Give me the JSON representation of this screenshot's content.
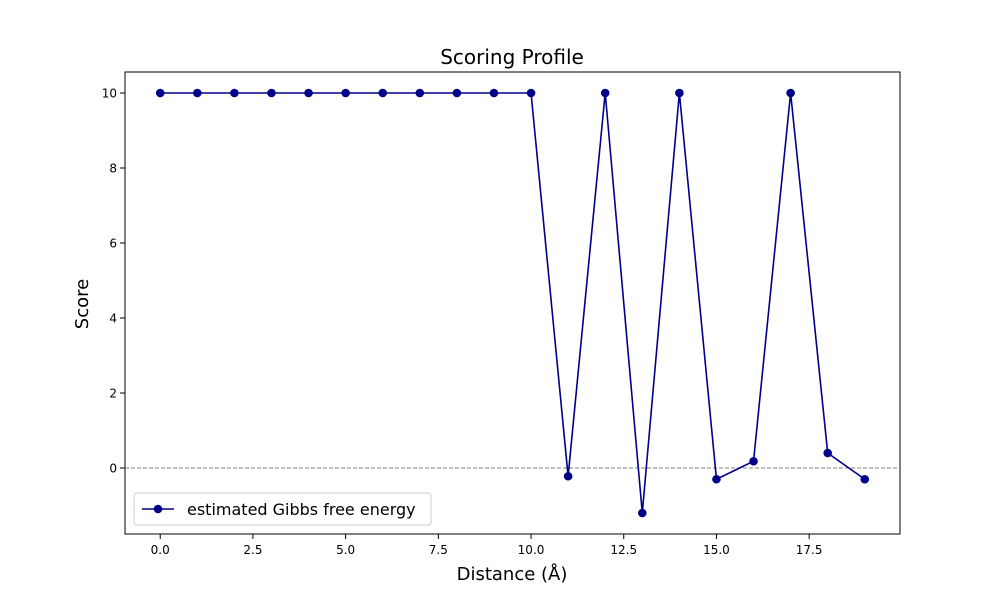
{
  "chart_data": {
    "type": "line",
    "title": "Scoring Profile",
    "xlabel": "Distance (Å)",
    "ylabel": "Score",
    "xlim": [
      -0.95,
      19.95
    ],
    "ylim": [
      -1.76,
      10.56
    ],
    "xticks": [
      0.0,
      2.5,
      5.0,
      7.5,
      10.0,
      12.5,
      15.0,
      17.5
    ],
    "xtick_labels": [
      "0.0",
      "2.5",
      "5.0",
      "7.5",
      "10.0",
      "12.5",
      "15.0",
      "17.5"
    ],
    "yticks": [
      0,
      2,
      4,
      6,
      8,
      10
    ],
    "ytick_labels": [
      "0",
      "2",
      "4",
      "6",
      "8",
      "10"
    ],
    "grid": false,
    "legend_position": "lower-left",
    "reference_line": {
      "y": 0,
      "style": "dashed",
      "color": "#808080"
    },
    "series": [
      {
        "name": "estimated Gibbs free energy",
        "color": "#00008b",
        "marker": "circle",
        "x": [
          0,
          1,
          2,
          3,
          4,
          5,
          6,
          7,
          8,
          9,
          10,
          11,
          12,
          13,
          14,
          15,
          16,
          17,
          18,
          19
        ],
        "y": [
          10,
          10,
          10,
          10,
          10,
          10,
          10,
          10,
          10,
          10,
          10,
          -0.22,
          10,
          -1.2,
          10,
          -0.3,
          0.18,
          10,
          0.4,
          -0.3
        ]
      }
    ]
  }
}
